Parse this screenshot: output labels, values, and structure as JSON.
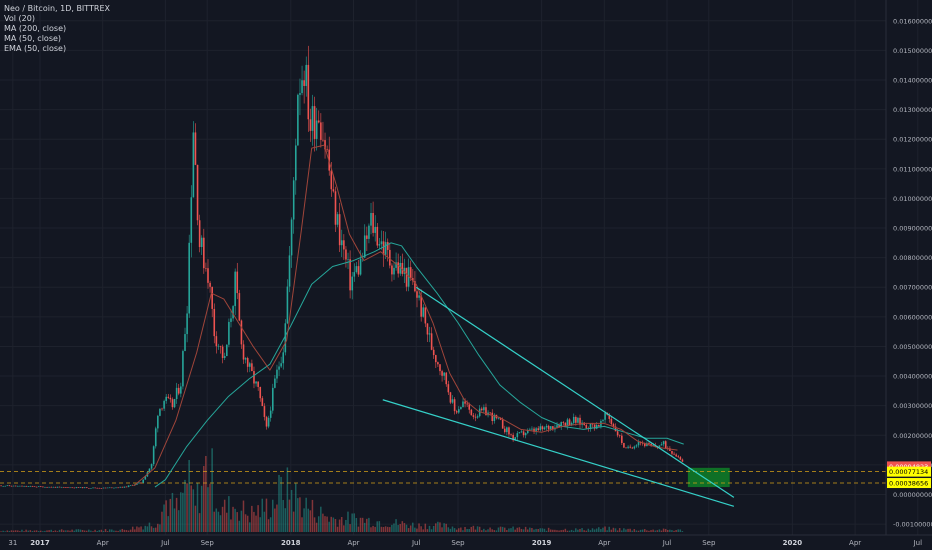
{
  "legend": {
    "title": "Neo / Bitcoin, 1D, BITTREX",
    "vol": "Vol (20)",
    "ma200": "MA (200, close)",
    "ma50": "MA (50, close)",
    "ema50": "EMA (50, close)"
  },
  "colors": {
    "background": "#131722",
    "grid": "#1e222d",
    "candle_up": "#26a69a",
    "candle_down": "#ef5350",
    "ma200": "#26a69a",
    "ma50_ema50": "#a0453a",
    "trendline": "#35d0c8",
    "dashed": "#d4a017",
    "target_zone": "#0f7a27",
    "label_red": "#ef5350",
    "label_yellow": "#ffff00"
  },
  "chart_data": {
    "type": "candlestick",
    "ylim": [
      -0.0012,
      0.0165
    ],
    "y_ticks": [
      "0.01600000",
      "0.01500000",
      "0.01400000",
      "0.01300000",
      "0.01200000",
      "0.01100000",
      "0.01000000",
      "0.00900000",
      "0.00800000",
      "0.00700000",
      "0.00600000",
      "0.00500000",
      "0.00400000",
      "0.00300000",
      "0.00200000",
      "0.00100000",
      "0.00000000",
      "-0.00100000"
    ],
    "y_tick_values": [
      0.016,
      0.015,
      0.014,
      0.013,
      0.012,
      0.011,
      0.01,
      0.009,
      0.008,
      0.007,
      0.006,
      0.005,
      0.004,
      0.003,
      0.002,
      0.001,
      0.0,
      -0.001
    ],
    "x_ticks": [
      {
        "label": "31",
        "t": -0.3,
        "bold": false
      },
      {
        "label": "2017",
        "t": 1,
        "bold": true
      },
      {
        "label": "Apr",
        "t": 4,
        "bold": false
      },
      {
        "label": "Jul",
        "t": 7,
        "bold": false
      },
      {
        "label": "Sep",
        "t": 9,
        "bold": false
      },
      {
        "label": "2018",
        "t": 13,
        "bold": true
      },
      {
        "label": "Apr",
        "t": 16,
        "bold": false
      },
      {
        "label": "Jul",
        "t": 19,
        "bold": false
      },
      {
        "label": "Sep",
        "t": 21,
        "bold": false
      },
      {
        "label": "2019",
        "t": 25,
        "bold": true
      },
      {
        "label": "Apr",
        "t": 28,
        "bold": false
      },
      {
        "label": "Jul",
        "t": 31,
        "bold": false
      },
      {
        "label": "Sep",
        "t": 33,
        "bold": false
      },
      {
        "label": "2020",
        "t": 37,
        "bold": true
      },
      {
        "label": "Apr",
        "t": 40,
        "bold": false
      },
      {
        "label": "Jul",
        "t": 43,
        "bold": false
      }
    ],
    "price_path": [
      [
        -1,
        0.0003
      ],
      [
        0,
        0.00028
      ],
      [
        2,
        0.00024
      ],
      [
        4,
        0.00022
      ],
      [
        5,
        0.00025
      ],
      [
        5.8,
        0.0004
      ],
      [
        6.3,
        0.001
      ],
      [
        6.6,
        0.0028
      ],
      [
        6.9,
        0.0032
      ],
      [
        7.3,
        0.003
      ],
      [
        7.7,
        0.0038
      ],
      [
        8,
        0.0065
      ],
      [
        8.3,
        0.0125
      ],
      [
        8.6,
        0.0085
      ],
      [
        9,
        0.0075
      ],
      [
        9.3,
        0.0055
      ],
      [
        9.8,
        0.0045
      ],
      [
        10.3,
        0.0072
      ],
      [
        10.6,
        0.005
      ],
      [
        11,
        0.0042
      ],
      [
        11.4,
        0.0035
      ],
      [
        11.8,
        0.0022
      ],
      [
        12.2,
        0.0038
      ],
      [
        12.6,
        0.005
      ],
      [
        13,
        0.009
      ],
      [
        13.3,
        0.0138
      ],
      [
        13.6,
        0.0145
      ],
      [
        13.9,
        0.0125
      ],
      [
        14.3,
        0.013
      ],
      [
        14.7,
        0.0115
      ],
      [
        15,
        0.0098
      ],
      [
        15.4,
        0.0085
      ],
      [
        15.8,
        0.0072
      ],
      [
        16.3,
        0.0078
      ],
      [
        16.8,
        0.0092
      ],
      [
        17.3,
        0.0085
      ],
      [
        17.7,
        0.0079
      ],
      [
        18.2,
        0.0076
      ],
      [
        18.6,
        0.0073
      ],
      [
        19,
        0.0068
      ],
      [
        19.3,
        0.006
      ],
      [
        19.7,
        0.005
      ],
      [
        20,
        0.0045
      ],
      [
        20.4,
        0.0038
      ],
      [
        20.8,
        0.0028
      ],
      [
        21.2,
        0.0031
      ],
      [
        21.7,
        0.0027
      ],
      [
        22.3,
        0.0028
      ],
      [
        23,
        0.0024
      ],
      [
        23.6,
        0.0019
      ],
      [
        24.2,
        0.0021
      ],
      [
        25,
        0.0022
      ],
      [
        25.8,
        0.0024
      ],
      [
        26.5,
        0.0025
      ],
      [
        27.3,
        0.0023
      ],
      [
        27.8,
        0.0024
      ],
      [
        28.1,
        0.0027
      ],
      [
        28.5,
        0.0022
      ],
      [
        29,
        0.0015
      ],
      [
        29.6,
        0.0018
      ],
      [
        30.2,
        0.0016
      ],
      [
        30.8,
        0.0017
      ],
      [
        31.3,
        0.0014
      ],
      [
        31.8,
        0.0011
      ]
    ],
    "ma200_path": [
      [
        6.5,
        0.00025
      ],
      [
        7,
        0.0005
      ],
      [
        8,
        0.0016
      ],
      [
        9,
        0.0025
      ],
      [
        10,
        0.0033
      ],
      [
        11,
        0.0039
      ],
      [
        12,
        0.0044
      ],
      [
        13,
        0.0057
      ],
      [
        14,
        0.0071
      ],
      [
        15,
        0.0077
      ],
      [
        16,
        0.0079
      ],
      [
        17,
        0.0082
      ],
      [
        17.8,
        0.0085
      ],
      [
        18.3,
        0.0084
      ],
      [
        19,
        0.0077
      ],
      [
        20,
        0.0068
      ],
      [
        21,
        0.0058
      ],
      [
        22,
        0.0047
      ],
      [
        23,
        0.0037
      ],
      [
        24,
        0.0031
      ],
      [
        25,
        0.0026
      ],
      [
        26,
        0.0023
      ],
      [
        27,
        0.0022
      ],
      [
        28,
        0.0023
      ],
      [
        29,
        0.0021
      ],
      [
        30,
        0.0019
      ],
      [
        31,
        0.0019
      ],
      [
        31.8,
        0.0017
      ]
    ],
    "ma50_path": [
      [
        5.5,
        0.0003
      ],
      [
        6.5,
        0.0009
      ],
      [
        7.5,
        0.0025
      ],
      [
        8.5,
        0.0048
      ],
      [
        9.2,
        0.0068
      ],
      [
        9.8,
        0.0066
      ],
      [
        10.5,
        0.0058
      ],
      [
        11.2,
        0.005
      ],
      [
        12,
        0.0042
      ],
      [
        12.8,
        0.0052
      ],
      [
        13.5,
        0.0089
      ],
      [
        14,
        0.0117
      ],
      [
        14.6,
        0.0118
      ],
      [
        15.2,
        0.0104
      ],
      [
        15.8,
        0.0088
      ],
      [
        16.5,
        0.0079
      ],
      [
        17.3,
        0.0082
      ],
      [
        18.2,
        0.0077
      ],
      [
        19,
        0.0071
      ],
      [
        19.8,
        0.0058
      ],
      [
        20.6,
        0.0041
      ],
      [
        21.3,
        0.0032
      ],
      [
        22,
        0.0028
      ],
      [
        23,
        0.0026
      ],
      [
        24,
        0.0022
      ],
      [
        25,
        0.0021
      ],
      [
        26,
        0.0023
      ],
      [
        27,
        0.0024
      ],
      [
        28,
        0.0024
      ],
      [
        28.8,
        0.0022
      ],
      [
        29.6,
        0.0018
      ],
      [
        30.5,
        0.0016
      ],
      [
        31.5,
        0.0015
      ]
    ],
    "trendlines": [
      {
        "name": "upper",
        "p1": [
          19,
          0.007
        ],
        "p2": [
          34.2,
          -0.0001
        ]
      },
      {
        "name": "lower",
        "p1": [
          17.4,
          0.0032
        ],
        "p2": [
          34.2,
          -0.0004
        ]
      }
    ],
    "target_zone": {
      "t1": 32,
      "t2": 34,
      "y_top": 0.0009,
      "y_bottom": 0.00025
    },
    "price_labels": [
      {
        "text": "0.00094823",
        "value": 0.00094823,
        "color": "red"
      },
      {
        "text": "0.00077134",
        "value": 0.00077134,
        "color": "yellow"
      },
      {
        "text": "0.00038656",
        "value": 0.00038656,
        "color": "yellow"
      }
    ],
    "dashed_levels": [
      0.00077134,
      0.00038656
    ],
    "volume": [
      [
        -1,
        0.003
      ],
      [
        5,
        0.005
      ],
      [
        6.5,
        0.02
      ],
      [
        7,
        0.07
      ],
      [
        7.6,
        0.05
      ],
      [
        8,
        0.12
      ],
      [
        8.4,
        0.06
      ],
      [
        9,
        0.16
      ],
      [
        9.6,
        0.05
      ],
      [
        10.3,
        0.06
      ],
      [
        11,
        0.04
      ],
      [
        12,
        0.06
      ],
      [
        12.6,
        0.1
      ],
      [
        13,
        0.09
      ],
      [
        13.4,
        0.07
      ],
      [
        14,
        0.05
      ],
      [
        15,
        0.03
      ],
      [
        16,
        0.03
      ],
      [
        17,
        0.025
      ],
      [
        18,
        0.02
      ],
      [
        19,
        0.015
      ],
      [
        20,
        0.015
      ],
      [
        21,
        0.01
      ],
      [
        22,
        0.01
      ],
      [
        23,
        0.008
      ],
      [
        24,
        0.008
      ],
      [
        25,
        0.006
      ],
      [
        26,
        0.006
      ],
      [
        27,
        0.006
      ],
      [
        28,
        0.008
      ],
      [
        29,
        0.006
      ],
      [
        30,
        0.005
      ],
      [
        31,
        0.005
      ],
      [
        31.8,
        0.004
      ]
    ]
  }
}
